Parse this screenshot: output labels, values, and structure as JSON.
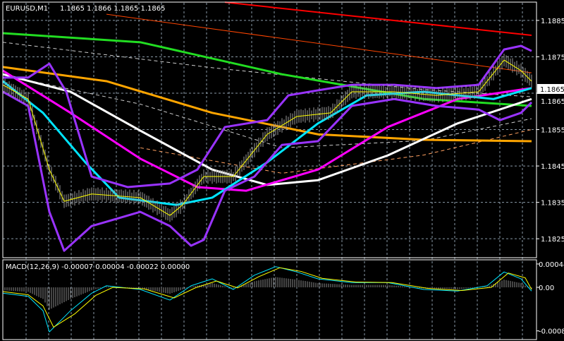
{
  "header": {
    "symbol": "EURUSD,M1",
    "ohlc": "1.1865 1.1866 1.1865 1.1865"
  },
  "current_price_label": "1.1865",
  "colors": {
    "background": "#000000",
    "grid": "#8a9aa8",
    "axis": "#ffffff",
    "price": "#ffff00",
    "bollinger": "#9933ff",
    "macd_main": "#00e5ff",
    "macd_signal": "#ffff00"
  },
  "chart_data": [
    {
      "type": "line",
      "panel": "main",
      "title": "",
      "ylim": [
        1.182,
        1.1892
      ],
      "xlim": [
        0,
        252
      ],
      "grid": true,
      "yticks": [
        "1.1885",
        "1.1875",
        "1.1865",
        "1.1855",
        "1.1845",
        "1.1835",
        "1.1825"
      ],
      "series": [
        {
          "color": "#ff0000",
          "width": 2,
          "points": [
            [
              105,
              1.189
            ],
            [
              250,
              1.18809
            ]
          ]
        },
        {
          "color": "#ff4500",
          "width": 1,
          "points": [
            [
              49,
              1.18867
            ],
            [
              250,
              1.18706
            ]
          ]
        },
        {
          "color": "#cccccc",
          "width": 1,
          "dash": true,
          "points": [
            [
              0,
              1.1879
            ],
            [
              99,
              1.1872
            ],
            [
              199,
              1.1866
            ],
            [
              250,
              1.1864
            ]
          ]
        },
        {
          "color": "#cccccc",
          "width": 1,
          "dash": true,
          "points": [
            [
              0,
              1.187
            ],
            [
              65,
              1.1862
            ],
            [
              132,
              1.185
            ],
            [
              199,
              1.1852
            ],
            [
              250,
              1.1858
            ]
          ]
        },
        {
          "color": "#ffa060",
          "width": 1,
          "dash": true,
          "points": [
            [
              65,
              1.185
            ],
            [
              132,
              1.1843
            ],
            [
              199,
              1.1848
            ],
            [
              250,
              1.1855
            ]
          ]
        },
        {
          "color": "#22dd22",
          "width": 3,
          "points": [
            [
              0,
              1.18815
            ],
            [
              65,
              1.1879
            ],
            [
              132,
              1.18702
            ],
            [
              199,
              1.18634
            ],
            [
              250,
              1.18615
            ]
          ]
        },
        {
          "color": "#ffa500",
          "width": 3,
          "points": [
            [
              0,
              1.18722
            ],
            [
              49,
              1.18683
            ],
            [
              99,
              1.18596
            ],
            [
              149,
              1.18537
            ],
            [
              199,
              1.18522
            ],
            [
              250,
              1.18518
            ]
          ]
        },
        {
          "color": "#ffffff",
          "width": 3,
          "points": [
            [
              0,
              1.18702
            ],
            [
              32,
              1.18654
            ],
            [
              65,
              1.18547
            ],
            [
              99,
              1.1844
            ],
            [
              125,
              1.18398
            ],
            [
              149,
              1.18411
            ],
            [
              182,
              1.18479
            ],
            [
              215,
              1.18567
            ],
            [
              250,
              1.18634
            ]
          ]
        },
        {
          "color": "#ff00ff",
          "width": 3,
          "points": [
            [
              0,
              1.18712
            ],
            [
              32,
              1.18596
            ],
            [
              65,
              1.1847
            ],
            [
              92,
              1.18392
            ],
            [
              115,
              1.18382
            ],
            [
              149,
              1.1844
            ],
            [
              182,
              1.18557
            ],
            [
              215,
              1.18634
            ],
            [
              250,
              1.18664
            ]
          ]
        },
        {
          "color": "#00e5ff",
          "width": 3,
          "points": [
            [
              0,
              1.18683
            ],
            [
              19,
              1.18596
            ],
            [
              39,
              1.1846
            ],
            [
              55,
              1.18363
            ],
            [
              82,
              1.18343
            ],
            [
              99,
              1.18363
            ],
            [
              125,
              1.1846
            ],
            [
              149,
              1.18567
            ],
            [
              172,
              1.18644
            ],
            [
              199,
              1.18654
            ],
            [
              232,
              1.18634
            ],
            [
              250,
              1.18664
            ]
          ]
        },
        {
          "color": "#9933ff",
          "width": 3,
          "points": [
            [
              0,
              1.18693
            ],
            [
              12,
              1.18693
            ],
            [
              22,
              1.18731
            ],
            [
              30,
              1.18654
            ],
            [
              42,
              1.18421
            ],
            [
              59,
              1.18392
            ],
            [
              79,
              1.18402
            ],
            [
              92,
              1.1844
            ],
            [
              105,
              1.18557
            ],
            [
              125,
              1.18576
            ],
            [
              135,
              1.18644
            ],
            [
              145,
              1.18654
            ],
            [
              165,
              1.18673
            ],
            [
              185,
              1.18673
            ],
            [
              205,
              1.18664
            ],
            [
              225,
              1.18673
            ],
            [
              237,
              1.1877
            ],
            [
              245,
              1.1878
            ],
            [
              250,
              1.18766
            ]
          ]
        },
        {
          "color": "#9933ff",
          "width": 3,
          "points": [
            [
              0,
              1.18654
            ],
            [
              12,
              1.18615
            ],
            [
              22,
              1.18324
            ],
            [
              29,
              1.18217
            ],
            [
              42,
              1.18285
            ],
            [
              65,
              1.18324
            ],
            [
              79,
              1.18285
            ],
            [
              89,
              1.18231
            ],
            [
              95,
              1.18247
            ],
            [
              105,
              1.18382
            ],
            [
              119,
              1.18421
            ],
            [
              132,
              1.18508
            ],
            [
              149,
              1.18518
            ],
            [
              165,
              1.18615
            ],
            [
              185,
              1.18634
            ],
            [
              205,
              1.18615
            ],
            [
              225,
              1.18605
            ],
            [
              235,
              1.18576
            ],
            [
              245,
              1.18596
            ],
            [
              250,
              1.18625
            ]
          ]
        },
        {
          "color": "#ffff00",
          "width": 1,
          "price": true,
          "points": [
            [
              0,
              1.18673
            ],
            [
              12,
              1.18634
            ],
            [
              22,
              1.1844
            ],
            [
              29,
              1.18353
            ],
            [
              42,
              1.18373
            ],
            [
              65,
              1.18363
            ],
            [
              79,
              1.18314
            ],
            [
              85,
              1.18343
            ],
            [
              95,
              1.18421
            ],
            [
              109,
              1.18421
            ],
            [
              125,
              1.18537
            ],
            [
              139,
              1.18586
            ],
            [
              155,
              1.18596
            ],
            [
              165,
              1.18654
            ],
            [
              185,
              1.18654
            ],
            [
              205,
              1.18644
            ],
            [
              225,
              1.18654
            ],
            [
              237,
              1.18741
            ],
            [
              245,
              1.18712
            ],
            [
              250,
              1.18683
            ]
          ]
        }
      ]
    },
    {
      "type": "line",
      "panel": "macd",
      "title": "MACD(12,26,9) -0.00007 0.00004 -0.00022 0.00000",
      "ylim": [
        -0.00088,
        0.00055
      ],
      "xlim": [
        0,
        252
      ],
      "yticks": [
        "0.00044",
        "0.00",
        "-0.00082"
      ],
      "series": [
        {
          "color": "#00e5ff",
          "width": 1,
          "histogram": true,
          "points": [
            [
              0,
              -0.00011
            ],
            [
              12,
              -0.00017
            ],
            [
              19,
              -0.00044
            ],
            [
              22,
              -0.00084
            ],
            [
              32,
              -0.00044
            ],
            [
              42,
              -0.00011
            ],
            [
              49,
              3e-05
            ],
            [
              65,
              -4e-05
            ],
            [
              79,
              -0.00024
            ],
            [
              89,
              3e-05
            ],
            [
              99,
              0.00016
            ],
            [
              109,
              -4e-05
            ],
            [
              119,
              0.00023
            ],
            [
              129,
              0.00039
            ],
            [
              139,
              0.00029
            ],
            [
              149,
              0.00016
            ],
            [
              165,
              9e-05
            ],
            [
              182,
              9e-05
            ],
            [
              199,
              -4e-05
            ],
            [
              215,
              -7e-05
            ],
            [
              229,
              3e-05
            ],
            [
              237,
              0.00029
            ],
            [
              245,
              0.00016
            ],
            [
              250,
              -7e-05
            ]
          ]
        },
        {
          "color": "#ffff00",
          "width": 1,
          "points": [
            [
              0,
              -8e-05
            ],
            [
              12,
              -0.00014
            ],
            [
              19,
              -0.00035
            ],
            [
              24,
              -0.00075
            ],
            [
              34,
              -0.0005
            ],
            [
              44,
              -0.00015
            ],
            [
              52,
              0.0
            ],
            [
              67,
              -3e-05
            ],
            [
              81,
              -0.0002
            ],
            [
              91,
              -1e-05
            ],
            [
              101,
              0.00012
            ],
            [
              111,
              -1e-05
            ],
            [
              121,
              0.0002
            ],
            [
              131,
              0.00037
            ],
            [
              141,
              0.0003
            ],
            [
              151,
              0.00017
            ],
            [
              167,
              0.0001
            ],
            [
              184,
              9e-05
            ],
            [
              201,
              -2e-05
            ],
            [
              217,
              -6e-05
            ],
            [
              231,
              0.0
            ],
            [
              239,
              0.00027
            ],
            [
              247,
              0.00018
            ],
            [
              250,
              -4e-05
            ]
          ]
        }
      ]
    }
  ]
}
